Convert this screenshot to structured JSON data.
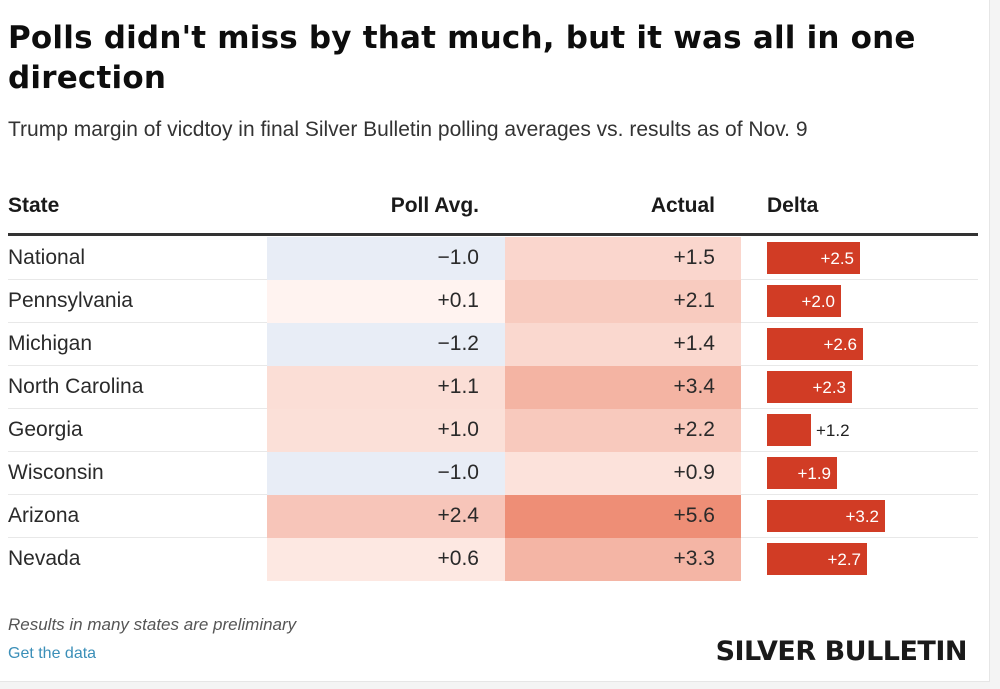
{
  "header": {
    "title": "Polls didn't miss by that much, but it was all in one direction",
    "subtitle": "Trump margin of vicdtoy in final Silver Bulletin polling averages vs. results as of Nov. 9"
  },
  "footer": {
    "note": "Results in many states are preliminary",
    "link_label": "Get the data",
    "brand": "SILVER BULLETIN"
  },
  "colors": {
    "delta_bar": "#d13c25",
    "negative_cell": "#e8edf6",
    "positive_scale_max": "#ee8a74",
    "link": "#3b8fb8"
  },
  "chart_data": {
    "type": "table",
    "title": "Polls didn't miss by that much, but it was all in one direction",
    "subtitle": "Trump margin of vicdtoy in final Silver Bulletin polling averages vs. results as of Nov. 9",
    "columns": [
      "State",
      "Poll Avg.",
      "Actual",
      "Delta"
    ],
    "rows": [
      {
        "state": "National",
        "poll": "−1.0",
        "poll_value": -1.0,
        "actual": "+1.5",
        "actual_value": 1.5,
        "delta": "+2.5",
        "delta_value": 2.5
      },
      {
        "state": "Pennsylvania",
        "poll": "+0.1",
        "poll_value": 0.1,
        "actual": "+2.1",
        "actual_value": 2.1,
        "delta": "+2.0",
        "delta_value": 2.0
      },
      {
        "state": "Michigan",
        "poll": "−1.2",
        "poll_value": -1.2,
        "actual": "+1.4",
        "actual_value": 1.4,
        "delta": "+2.6",
        "delta_value": 2.6
      },
      {
        "state": "North Carolina",
        "poll": "+1.1",
        "poll_value": 1.1,
        "actual": "+3.4",
        "actual_value": 3.4,
        "delta": "+2.3",
        "delta_value": 2.3
      },
      {
        "state": "Georgia",
        "poll": "+1.0",
        "poll_value": 1.0,
        "actual": "+2.2",
        "actual_value": 2.2,
        "delta": "+1.2",
        "delta_value": 1.2
      },
      {
        "state": "Wisconsin",
        "poll": "−1.0",
        "poll_value": -1.0,
        "actual": "+0.9",
        "actual_value": 0.9,
        "delta": "+1.9",
        "delta_value": 1.9
      },
      {
        "state": "Arizona",
        "poll": "+2.4",
        "poll_value": 2.4,
        "actual": "+5.6",
        "actual_value": 5.6,
        "delta": "+3.2",
        "delta_value": 3.2
      },
      {
        "state": "Nevada",
        "poll": "+0.6",
        "poll_value": 0.6,
        "actual": "+3.3",
        "actual_value": 3.3,
        "delta": "+2.7",
        "delta_value": 2.7
      }
    ]
  }
}
